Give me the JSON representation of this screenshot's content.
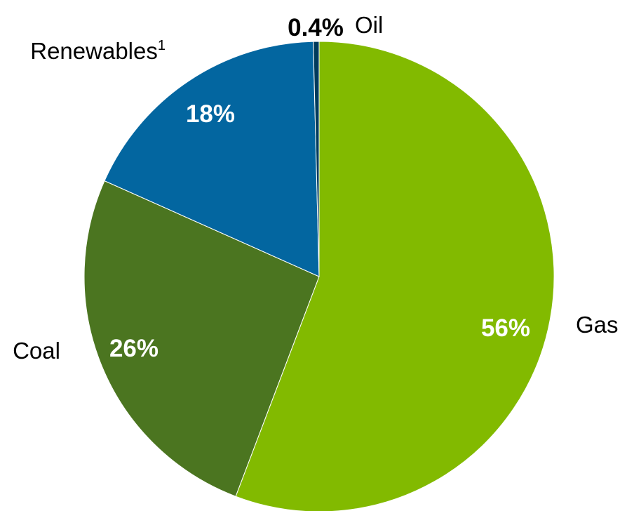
{
  "chart_data": {
    "type": "pie",
    "start_angle_deg": 0,
    "direction": "clockwise",
    "slices": [
      {
        "label": "Gas",
        "value": 56,
        "value_label": "56%",
        "color": "#82BA00",
        "value_label_color": "#ffffff"
      },
      {
        "label": "Coal",
        "value": 26,
        "value_label": "26%",
        "color": "#4B7520",
        "value_label_color": "#ffffff"
      },
      {
        "label": "Renewables",
        "label_superscript": "1",
        "value": 18,
        "value_label": "18%",
        "color": "#0366A0",
        "value_label_color": "#ffffff"
      },
      {
        "label": "Oil",
        "value": 0.4,
        "value_label": "0.4%",
        "color": "#003B5C",
        "value_label_color": "#000000"
      }
    ]
  }
}
